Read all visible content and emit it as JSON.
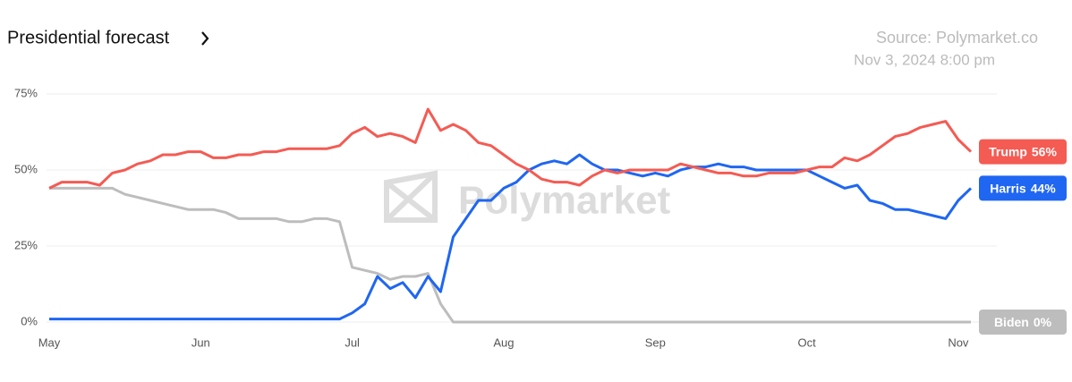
{
  "chart_data": {
    "type": "line",
    "title": "Presidential forecast",
    "source": "Source: Polymarket.co",
    "timestamp": "Nov 3, 2024 8:00 pm",
    "watermark": "Polymarket",
    "categories": [
      "May",
      null,
      null,
      null,
      null,
      null,
      null,
      null,
      null,
      null,
      null,
      null,
      "Jun",
      null,
      null,
      null,
      null,
      null,
      null,
      null,
      null,
      null,
      null,
      null,
      "Jul",
      null,
      null,
      null,
      null,
      null,
      null,
      null,
      null,
      null,
      null,
      null,
      "Aug",
      null,
      null,
      null,
      null,
      null,
      null,
      null,
      null,
      null,
      null,
      null,
      "Sep",
      null,
      null,
      null,
      null,
      null,
      null,
      null,
      null,
      null,
      null,
      null,
      "Oct",
      null,
      null,
      null,
      null,
      null,
      null,
      null,
      null,
      null,
      null,
      null,
      "Nov",
      null
    ],
    "series": [
      {
        "name": "Trump",
        "color": "#f45b53",
        "last_label": "56%",
        "values": [
          44,
          46,
          46,
          46,
          45,
          49,
          50,
          52,
          53,
          55,
          55,
          56,
          56,
          54,
          54,
          55,
          55,
          56,
          56,
          57,
          57,
          57,
          57,
          58,
          62,
          64,
          61,
          62,
          61,
          59,
          70,
          63,
          65,
          63,
          59,
          58,
          55,
          52,
          50,
          47,
          46,
          46,
          45,
          48,
          50,
          49,
          50,
          50,
          50,
          50,
          52,
          51,
          50,
          49,
          49,
          48,
          48,
          49,
          49,
          49,
          50,
          51,
          51,
          54,
          53,
          55,
          58,
          61,
          62,
          64,
          65,
          66,
          60,
          56
        ]
      },
      {
        "name": "Harris",
        "color": "#1f66f2",
        "last_label": "44%",
        "values": [
          1,
          1,
          1,
          1,
          1,
          1,
          1,
          1,
          1,
          1,
          1,
          1,
          1,
          1,
          1,
          1,
          1,
          1,
          1,
          1,
          1,
          1,
          1,
          1,
          3,
          6,
          15,
          11,
          13,
          8,
          15,
          10,
          28,
          34,
          40,
          40,
          44,
          46,
          50,
          52,
          53,
          52,
          55,
          52,
          50,
          50,
          49,
          48,
          49,
          48,
          50,
          51,
          51,
          52,
          51,
          51,
          50,
          50,
          50,
          50,
          50,
          48,
          46,
          44,
          45,
          40,
          39,
          37,
          37,
          36,
          35,
          34,
          40,
          44
        ]
      },
      {
        "name": "Biden",
        "color": "#bdbdbd",
        "last_label": "0%",
        "values": [
          44,
          44,
          44,
          44,
          44,
          44,
          42,
          41,
          40,
          39,
          38,
          37,
          37,
          37,
          36,
          34,
          34,
          34,
          34,
          33,
          33,
          34,
          34,
          33,
          18,
          17,
          16,
          14,
          15,
          15,
          16,
          6,
          0,
          0,
          0,
          0,
          0,
          0,
          0,
          0,
          0,
          0,
          0,
          0,
          0,
          0,
          0,
          0,
          0,
          0,
          0,
          0,
          0,
          0,
          0,
          0,
          0,
          0,
          0,
          0,
          0,
          0,
          0,
          0,
          0,
          0,
          0,
          0,
          0,
          0,
          0,
          0,
          0,
          0
        ]
      }
    ],
    "ylim": [
      0,
      75
    ],
    "yticks": [
      {
        "value": 0,
        "label": "0%"
      },
      {
        "value": 25,
        "label": "25%"
      },
      {
        "value": 50,
        "label": "50%"
      },
      {
        "value": 75,
        "label": "75%"
      }
    ],
    "grid": true
  }
}
